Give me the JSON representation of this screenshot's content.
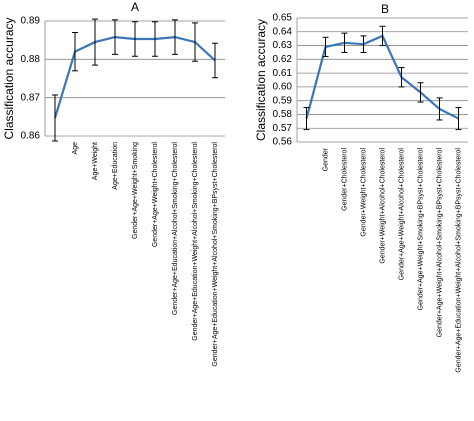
{
  "chart_data": [
    {
      "type": "line",
      "title": "A",
      "ylabel": "Classification accuracy",
      "categories": [
        null,
        "Age",
        "Age+Weight",
        "Age+Education",
        "Gender+Age+Weight+Smoking",
        "Gender+Age+Weight+Cholesterol",
        "Gender+Age+Education+Alcohol+Smoking+Cholesterol",
        "Gender+Age+Education+Weight+Alcohol+Smoking+Cholesterol",
        "Gender+Age+Education+Weight+Alcohol+Smoking+BPsyst+Cholesterol"
      ],
      "series": [
        {
          "color": "#3a76b8",
          "values": [
            0.8647,
            0.882,
            0.8845,
            0.8858,
            0.8853,
            0.8853,
            0.8858,
            0.8845,
            0.8797
          ],
          "errors": [
            0.006,
            0.005,
            0.006,
            0.0045,
            0.0045,
            0.0045,
            0.0045,
            0.005,
            0.0045
          ]
        }
      ],
      "ylim": [
        0.86,
        0.89
      ],
      "yticks": [
        0.86,
        0.87,
        0.88,
        0.89
      ],
      "grid": true
    },
    {
      "type": "line",
      "title": "B",
      "ylabel": "Classification accuracy",
      "categories": [
        null,
        "Gender",
        "Gender+Cholesterol",
        "Gender+Weight+Cholesterol",
        "Gender+Weight+Alcohol+Cholesterol",
        "Gender+Age+Weight+Alcohol+Cholesterol",
        "Gender+Age+Weight+Smoking+BPsyst+Cholesterol",
        "Gender+Age+Weight+Alcohol+Smoking+BPsyst+Cholesterol",
        "Gender+Age+Education+Weight+Alcohol+Smoking+BPsyst+Cholesterol"
      ],
      "series": [
        {
          "color": "#3a76b8",
          "values": [
            0.577,
            0.629,
            0.632,
            0.631,
            0.637,
            0.607,
            0.596,
            0.584,
            0.577
          ],
          "errors": [
            0.008,
            0.007,
            0.007,
            0.006,
            0.007,
            0.007,
            0.007,
            0.008,
            0.008
          ]
        }
      ],
      "ylim": [
        0.56,
        0.65
      ],
      "yticks": [
        0.56,
        0.57,
        0.58,
        0.59,
        {
          "value": 0.6,
          "label": "0.60"
        },
        0.61,
        0.62,
        0.63,
        0.64,
        0.65
      ],
      "grid": true
    }
  ]
}
